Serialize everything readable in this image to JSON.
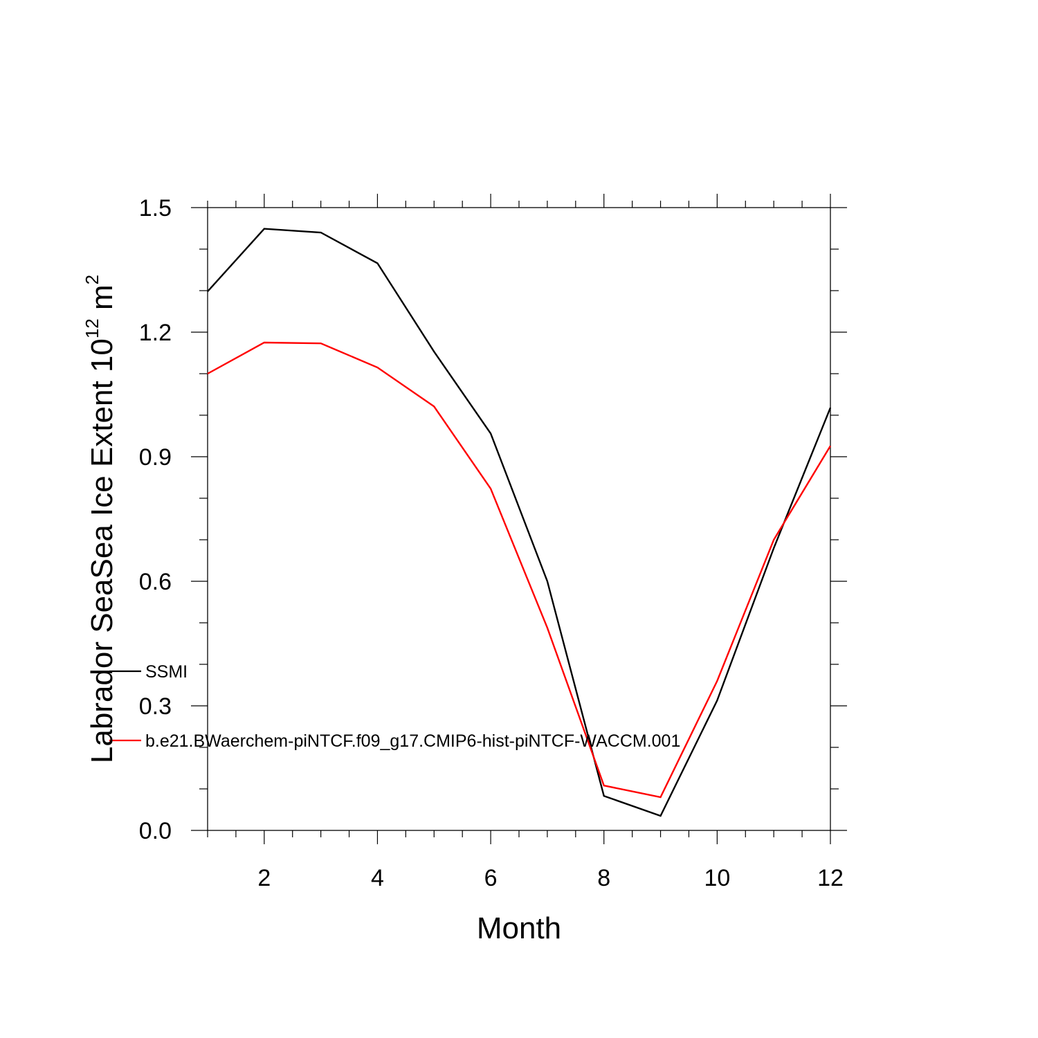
{
  "chart_data": {
    "type": "line",
    "xlabel": "Month",
    "ylabel": {
      "prefix": "Labrador SeaSea Ice Extent 10",
      "exponent": "12",
      "unit": " m",
      "unit_exponent": "2"
    },
    "xlim": [
      1,
      12
    ],
    "ylim": [
      0,
      1.5
    ],
    "xticks": [
      2,
      4,
      6,
      8,
      10,
      12
    ],
    "xtick_labels": [
      "2",
      "4",
      "6",
      "8",
      "10",
      "12"
    ],
    "yticks": [
      0,
      0.3,
      0.6,
      0.9,
      1.2,
      1.5
    ],
    "ytick_labels": [
      "0.0",
      "0.3",
      "0.6",
      "0.9",
      "1.2",
      "1.5"
    ],
    "grid": false,
    "legend_position": "lower-left inside",
    "x": [
      1,
      2,
      3,
      4,
      5,
      6,
      7,
      8,
      9,
      10,
      11,
      12
    ],
    "series": [
      {
        "name": "SSMI",
        "color": "#000000",
        "values": [
          1.298,
          1.449,
          1.44,
          1.366,
          1.153,
          0.956,
          0.6,
          0.083,
          0.035,
          0.313,
          0.68,
          1.018
        ]
      },
      {
        "name": "b.e21.BWaerchem-piNTCF.f09_g17.CMIP6-hist-piNTCF-WACCM.001",
        "color": "#ff0000",
        "values": [
          1.1,
          1.175,
          1.173,
          1.115,
          1.021,
          0.823,
          0.488,
          0.108,
          0.08,
          0.36,
          0.7,
          0.926
        ]
      }
    ]
  }
}
